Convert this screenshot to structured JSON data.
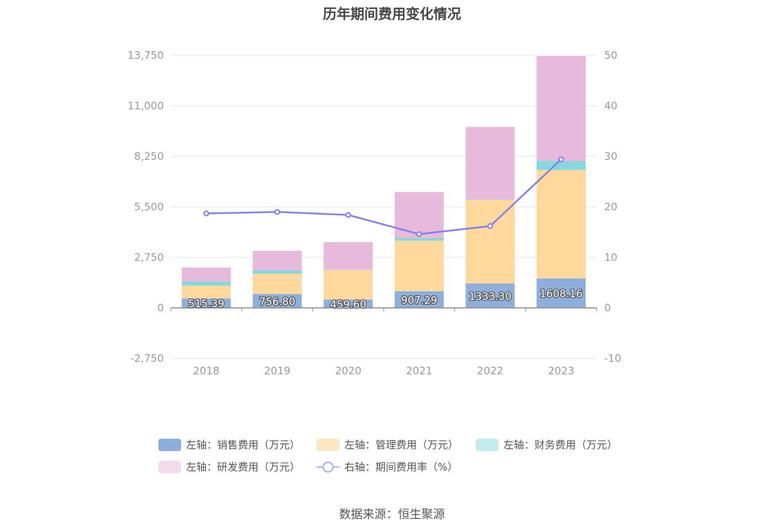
{
  "title": "历年期间费用变化情况",
  "source": "数据来源：恒生聚源",
  "chart_data": {
    "type": "bar",
    "stacked": true,
    "categories": [
      "2018",
      "2019",
      "2020",
      "2021",
      "2022",
      "2023"
    ],
    "left_axis": {
      "min": -2750,
      "max": 13750,
      "ticks": [
        -2750,
        0,
        2750,
        5500,
        8250,
        11000,
        13750
      ],
      "tick_labels": [
        "-2,750",
        "0",
        "2,750",
        "5,500",
        "8,250",
        "11,000",
        "13,750"
      ]
    },
    "right_axis": {
      "min": -10,
      "max": 50,
      "ticks": [
        -10,
        0,
        10,
        20,
        30,
        40,
        50
      ],
      "tick_labels": [
        "-10",
        "0",
        "10",
        "20",
        "30",
        "40",
        "50"
      ]
    },
    "grid": true,
    "legend_position": "bottom",
    "series": [
      {
        "name": "左轴：销售费用（万元）",
        "type": "bar",
        "axis": "left",
        "color": "#8eaedc",
        "values": [
          515.39,
          756.8,
          459.6,
          907.29,
          1333.3,
          1608.16
        ],
        "labels": [
          "515.39",
          "756.80",
          "459.60",
          "907.29",
          "1333.30",
          "1608.16"
        ]
      },
      {
        "name": "左轴：管理费用（万元）",
        "type": "bar",
        "axis": "left",
        "color": "#ffd89b",
        "values": [
          700,
          1100,
          1600,
          2750,
          4550,
          5900
        ]
      },
      {
        "name": "左轴：财务费用（万元）",
        "type": "bar",
        "axis": "left",
        "color": "#87d8dc",
        "values": [
          230,
          200,
          20,
          150,
          20,
          500
        ]
      },
      {
        "name": "左轴：研发费用（万元）",
        "type": "bar",
        "axis": "left",
        "color": "#e7b9db",
        "values": [
          750,
          1050,
          1500,
          2500,
          3950,
          5700
        ]
      },
      {
        "name": "右轴：期间费用率（%）",
        "type": "line",
        "axis": "right",
        "color": "#8080ee",
        "values": [
          18.7,
          19.0,
          18.4,
          14.6,
          16.2,
          29.4
        ]
      }
    ]
  }
}
